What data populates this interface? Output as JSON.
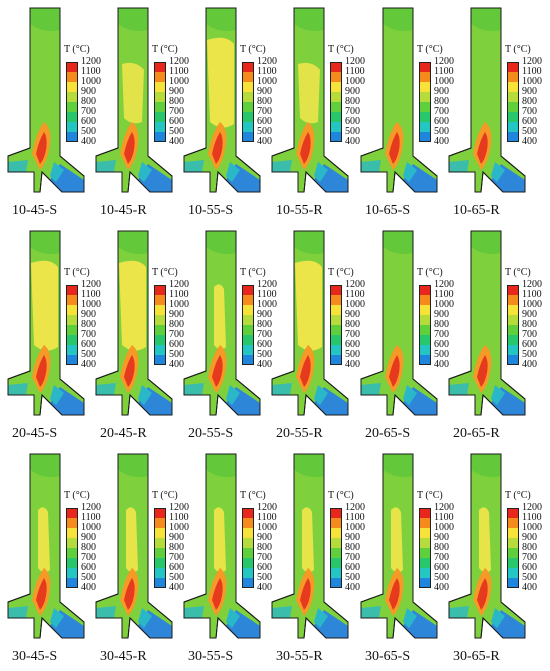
{
  "colorbar": {
    "title": "T (°C)",
    "ticks": [
      "1200",
      "1100",
      "1000",
      "900",
      "800",
      "700",
      "600",
      "500",
      "400"
    ],
    "colors": [
      "#e8261b",
      "#f58b1c",
      "#f7e23a",
      "#b6dc3c",
      "#5fcf3c",
      "#28c76c",
      "#24c6c4",
      "#1f86de",
      "#1c2fcf"
    ]
  },
  "palette": {
    "body": "#7ed13c",
    "upper": "#63c93a",
    "warm": "#f2e64a",
    "hot": "#f59a26",
    "core": "#e63a1f",
    "cool": "#2ab8c8",
    "cold": "#2d86d8",
    "outline": "#1a1a1a"
  },
  "panels": [
    {
      "label": "10-45-S",
      "warm": "none"
    },
    {
      "label": "10-45-R",
      "warm": "small"
    },
    {
      "label": "10-55-S",
      "warm": "large"
    },
    {
      "label": "10-55-R",
      "warm": "small"
    },
    {
      "label": "10-65-S",
      "warm": "none"
    },
    {
      "label": "10-65-R",
      "warm": "none"
    },
    {
      "label": "20-45-S",
      "warm": "large"
    },
    {
      "label": "20-45-R",
      "warm": "large"
    },
    {
      "label": "20-55-S",
      "warm": "plume"
    },
    {
      "label": "20-55-R",
      "warm": "large"
    },
    {
      "label": "20-65-S",
      "warm": "none"
    },
    {
      "label": "20-65-R",
      "warm": "none"
    },
    {
      "label": "30-45-S",
      "warm": "plume"
    },
    {
      "label": "30-45-R",
      "warm": "plume"
    },
    {
      "label": "30-55-S",
      "warm": "plume"
    },
    {
      "label": "30-55-R",
      "warm": "plume"
    },
    {
      "label": "30-65-S",
      "warm": "plume"
    },
    {
      "label": "30-65-R",
      "warm": "plume"
    }
  ]
}
